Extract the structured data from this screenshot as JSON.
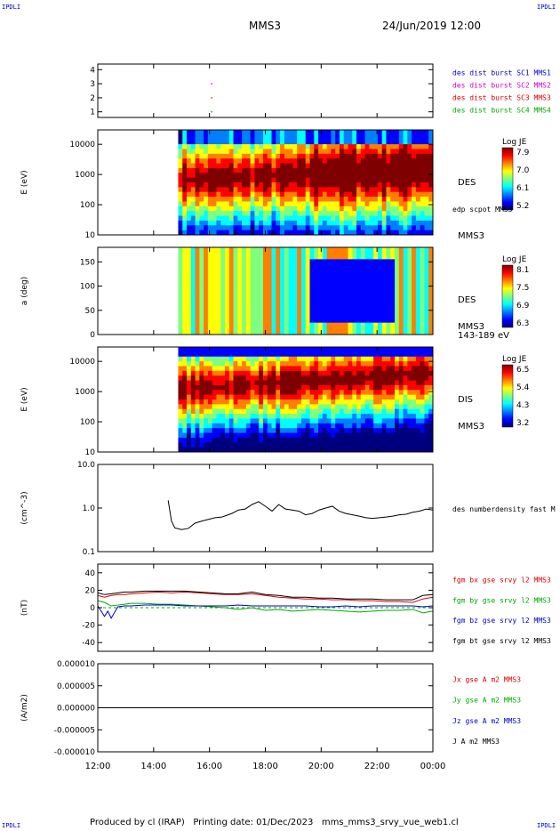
{
  "header": {
    "corner_label": "IPDLI",
    "title": "MMS3",
    "datetime": "24/Jun/2019 12:00"
  },
  "footer": {
    "credit": "Produced by cl (IRAP)   Printing date: 01/Dec/2023   mms_mms3_srvy_vue_web1.cl"
  },
  "colors": {
    "blue": "#0000cc",
    "magenta": "#cc00cc",
    "red": "#dd0000",
    "green": "#00aa00",
    "black": "#000000"
  },
  "colorbar_palette": [
    "#00007f",
    "#0000ff",
    "#007fff",
    "#00ffff",
    "#7fff7f",
    "#ffff00",
    "#ff7f00",
    "#ff0000",
    "#7f0000"
  ],
  "chart_data": [
    {
      "id": "sc-position",
      "type": "scatter",
      "ylabel": "",
      "ylim": [
        0.6,
        4.4
      ],
      "yticks": [
        "1",
        "2",
        "3",
        "4"
      ],
      "points": [
        {
          "x": 0.34,
          "y": 3.0,
          "color": "magenta"
        },
        {
          "x": 0.34,
          "y": 2.0,
          "color": "red"
        },
        {
          "x": 0.34,
          "y": 1.0,
          "color": "green"
        }
      ],
      "legend": [
        {
          "text": "des dist burst SC1 MMS1",
          "color": "blue"
        },
        {
          "text": "des dist burst SC2 MMS2",
          "color": "magenta"
        },
        {
          "text": "des dist burst SC3 MMS3",
          "color": "red"
        },
        {
          "text": "des dist burst SC4 MMS4",
          "color": "green"
        }
      ]
    },
    {
      "id": "des-energy",
      "type": "heatmap",
      "ylabel": "E (eV)",
      "yscale": "log",
      "ylim": [
        10,
        30000
      ],
      "yticks": [
        "10",
        "100",
        "1000",
        "10000"
      ],
      "data_start": 0.24,
      "right_labels": [
        "DES",
        "edp scpot MMS3",
        "MMS3"
      ],
      "colorbar": {
        "title": "Log JE",
        "ticks": [
          "7.9",
          "7.0",
          "6.1",
          "5.2"
        ]
      }
    },
    {
      "id": "des-pitch",
      "type": "heatmap",
      "ylabel": "a (deg)",
      "ylim": [
        0,
        180
      ],
      "yticks": [
        "0",
        "50",
        "100",
        "150"
      ],
      "data_start": 0.24,
      "right_labels": [
        "DES",
        "MMS3",
        "143-189 eV"
      ],
      "colorbar": {
        "title": "Log JE",
        "ticks": [
          "8.1",
          "7.5",
          "6.9",
          "6.3"
        ]
      }
    },
    {
      "id": "dis-energy",
      "type": "heatmap",
      "ylabel": "E (eV)",
      "yscale": "log",
      "ylim": [
        10,
        30000
      ],
      "yticks": [
        "10",
        "100",
        "1000",
        "10000"
      ],
      "data_start": 0.24,
      "right_labels": [
        "DIS",
        "MMS3"
      ],
      "colorbar": {
        "title": "Log JE",
        "ticks": [
          "6.5",
          "5.4",
          "4.3",
          "3.2"
        ]
      }
    },
    {
      "id": "des-density",
      "type": "line",
      "ylabel": "(cm^-3)",
      "yscale": "log",
      "ylim": [
        0.1,
        10.0
      ],
      "yticks": [
        "0.1",
        "1.0",
        "10.0"
      ],
      "series": [
        {
          "name": "des numberdensity fast M",
          "color": "black",
          "x": [
            0.21,
            0.22,
            0.23,
            0.25,
            0.27,
            0.29,
            0.31,
            0.33,
            0.35,
            0.37,
            0.4,
            0.42,
            0.44,
            0.46,
            0.48,
            0.5,
            0.52,
            0.54,
            0.56,
            0.58,
            0.6,
            0.62,
            0.64,
            0.66,
            0.68,
            0.7,
            0.72,
            0.74,
            0.76,
            0.78,
            0.8,
            0.82,
            0.84,
            0.86,
            0.88,
            0.9,
            0.92,
            0.94,
            0.96,
            0.98,
            1.0
          ],
          "y": [
            1.5,
            0.5,
            0.35,
            0.32,
            0.34,
            0.45,
            0.5,
            0.55,
            0.6,
            0.62,
            0.75,
            0.9,
            0.95,
            1.2,
            1.4,
            1.1,
            0.85,
            1.2,
            0.95,
            0.9,
            0.85,
            0.7,
            0.75,
            0.9,
            1.0,
            1.1,
            0.85,
            0.75,
            0.7,
            0.65,
            0.6,
            0.58,
            0.6,
            0.62,
            0.65,
            0.7,
            0.72,
            0.8,
            0.85,
            0.95,
            0.9
          ]
        }
      ]
    },
    {
      "id": "fgm",
      "type": "line",
      "ylabel": "(nT)",
      "ylim": [
        -50,
        50
      ],
      "yticks": [
        "-40",
        "-20",
        "0",
        "20",
        "40"
      ],
      "series": [
        {
          "name": "fgm bx gse srvy l2 MMS3",
          "color": "red",
          "x": [
            0.0,
            0.02,
            0.04,
            0.06,
            0.08,
            0.1,
            0.14,
            0.18,
            0.22,
            0.26,
            0.3,
            0.34,
            0.38,
            0.42,
            0.46,
            0.5,
            0.54,
            0.58,
            0.62,
            0.66,
            0.7,
            0.74,
            0.78,
            0.82,
            0.86,
            0.9,
            0.94,
            0.97,
            1.0
          ],
          "y": [
            14,
            12,
            14,
            15,
            15,
            16,
            17,
            18,
            17,
            18,
            17,
            16,
            15,
            15,
            16,
            14,
            12,
            11,
            10,
            10,
            9,
            9,
            8,
            8,
            7,
            7,
            6,
            10,
            12
          ]
        },
        {
          "name": "fgm by gse srvy l2 MMS3",
          "color": "green",
          "x": [
            0.0,
            0.02,
            0.04,
            0.06,
            0.08,
            0.1,
            0.14,
            0.18,
            0.22,
            0.26,
            0.3,
            0.34,
            0.38,
            0.42,
            0.46,
            0.5,
            0.54,
            0.58,
            0.62,
            0.66,
            0.7,
            0.74,
            0.78,
            0.82,
            0.86,
            0.9,
            0.94,
            0.97,
            1.0
          ],
          "y": [
            8,
            6,
            2,
            3,
            4,
            5,
            5,
            4,
            4,
            3,
            2,
            1,
            0,
            -2,
            0,
            -3,
            -2,
            -4,
            -3,
            -2,
            -3,
            -4,
            -5,
            -4,
            -3,
            -3,
            -2,
            -6,
            -4
          ]
        },
        {
          "name": "fgm bz gse srvy l2 MMS3",
          "color": "blue",
          "x": [
            0.0,
            0.02,
            0.03,
            0.04,
            0.06,
            0.08,
            0.1,
            0.14,
            0.18,
            0.22,
            0.26,
            0.3,
            0.34,
            0.38,
            0.42,
            0.46,
            0.5,
            0.54,
            0.58,
            0.62,
            0.66,
            0.7,
            0.74,
            0.78,
            0.82,
            0.86,
            0.9,
            0.94,
            0.97,
            1.0
          ],
          "y": [
            2,
            -10,
            -4,
            -12,
            1,
            2,
            2,
            3,
            3,
            3,
            2,
            2,
            2,
            2,
            3,
            2,
            2,
            2,
            2,
            2,
            1,
            1,
            2,
            1,
            2,
            2,
            2,
            2,
            1,
            2
          ]
        },
        {
          "name": "fgm bt gse srvy l2 MMS3",
          "color": "black",
          "x": [
            0.0,
            0.02,
            0.04,
            0.06,
            0.08,
            0.1,
            0.14,
            0.18,
            0.22,
            0.26,
            0.3,
            0.34,
            0.38,
            0.42,
            0.46,
            0.5,
            0.54,
            0.58,
            0.62,
            0.66,
            0.7,
            0.74,
            0.78,
            0.82,
            0.86,
            0.9,
            0.94,
            0.97,
            1.0
          ],
          "y": [
            17,
            15,
            16,
            17,
            18,
            18,
            19,
            19,
            19,
            19,
            18,
            17,
            16,
            16,
            18,
            15,
            14,
            12,
            12,
            11,
            11,
            10,
            10,
            10,
            9,
            9,
            9,
            14,
            15
          ]
        }
      ]
    },
    {
      "id": "current",
      "type": "line",
      "ylabel": "(A/m2)",
      "ylim": [
        -1e-05,
        1e-05
      ],
      "yticks": [
        "-0.000010",
        "-0.000005",
        "0.000000",
        "0.000005",
        "0.000010"
      ],
      "series": [
        {
          "name": "Jx gse A m2 MMS3",
          "color": "red",
          "x": [
            0,
            1
          ],
          "y": [
            0,
            0
          ]
        },
        {
          "name": "Jy gse A m2 MMS3",
          "color": "green",
          "x": [
            0,
            1
          ],
          "y": [
            0,
            0
          ]
        },
        {
          "name": "Jz gse A m2 MMS3",
          "color": "blue",
          "x": [
            0,
            1
          ],
          "y": [
            0,
            0
          ]
        },
        {
          "name": "J A m2 MMS3",
          "color": "black",
          "x": [
            0,
            1
          ],
          "y": [
            0,
            0
          ]
        }
      ]
    }
  ],
  "time_axis": {
    "ticks": [
      "12:00",
      "14:00",
      "16:00",
      "18:00",
      "20:00",
      "22:00",
      "00:00"
    ]
  }
}
